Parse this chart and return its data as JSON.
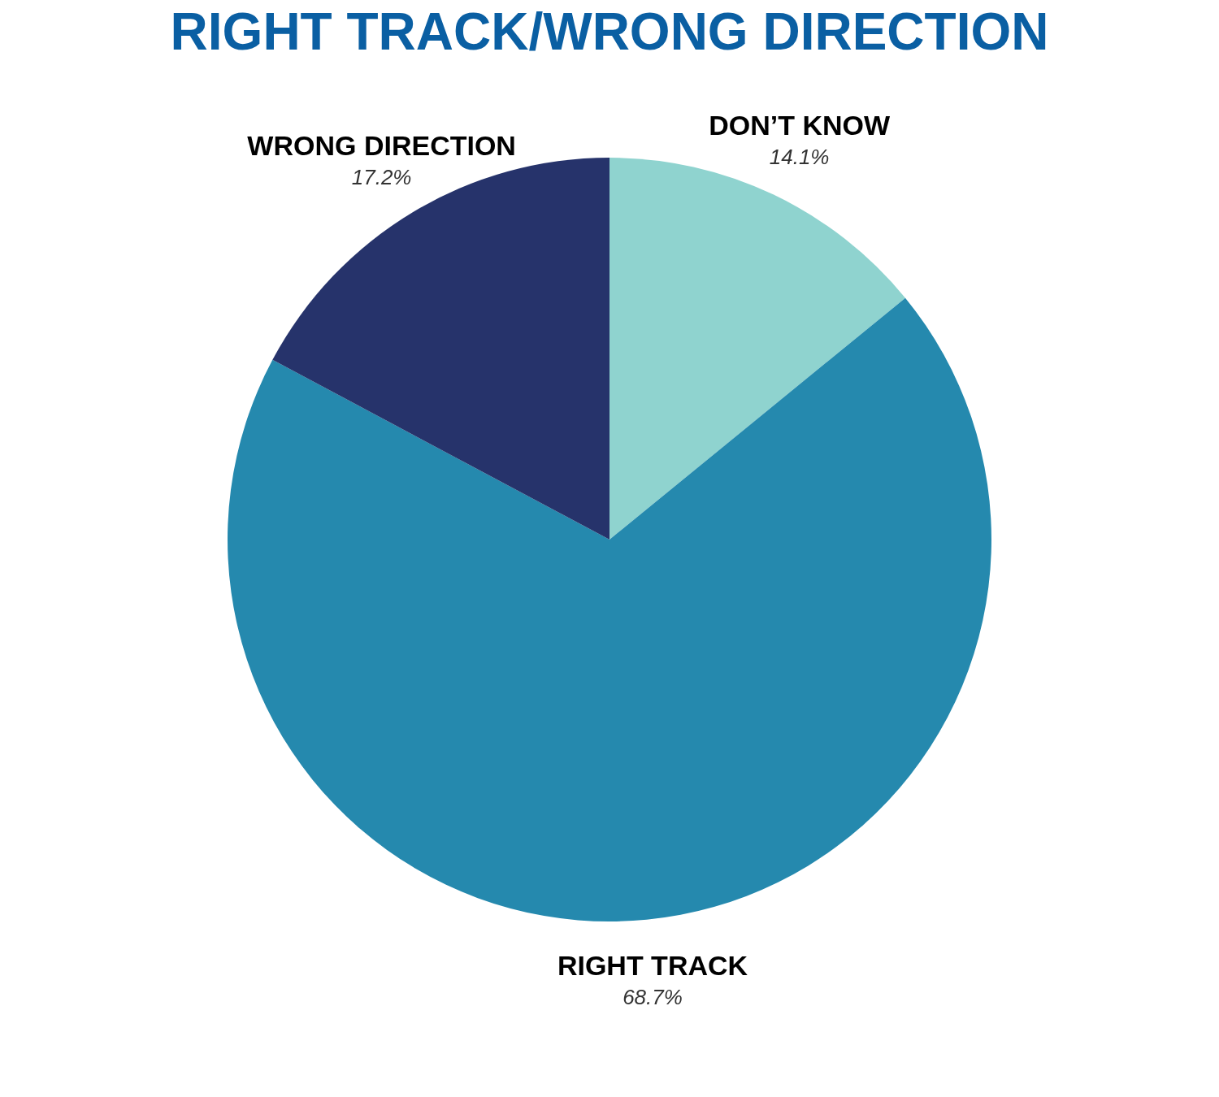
{
  "chart_data": {
    "type": "pie",
    "title": "RIGHT TRACK/WRONG DIRECTION",
    "categories": [
      "DON’T KNOW",
      "RIGHT TRACK",
      "WRONG DIRECTION"
    ],
    "values": [
      14.1,
      68.7,
      17.2
    ],
    "colors": [
      "#8fd3cf",
      "#2589ae",
      "#26336b"
    ],
    "value_labels": [
      "14.1%",
      "68.7%",
      "17.2%"
    ]
  }
}
